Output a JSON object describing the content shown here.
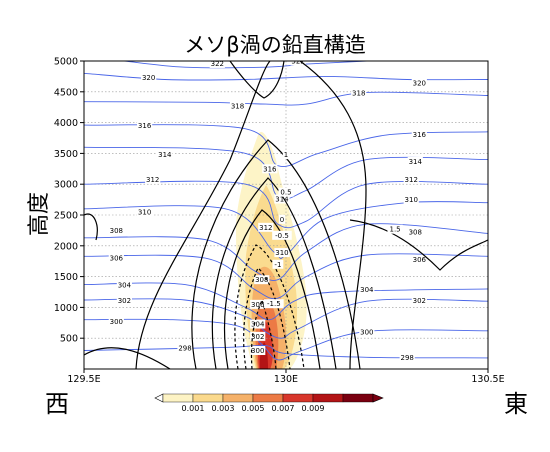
{
  "chart_data": {
    "type": "contour",
    "title": "メソβ渦の鉛直構造",
    "ylabel": "高度",
    "west_label": "西",
    "east_label": "東",
    "xlim": [
      129.5,
      130.5
    ],
    "ylim": [
      0,
      5000
    ],
    "x_ticks": [
      129.5,
      130.0,
      130.5
    ],
    "x_tick_labels": [
      "129.5E",
      "130E",
      "130.5E"
    ],
    "y_ticks": [
      500,
      1000,
      1500,
      2000,
      2500,
      3000,
      3500,
      4000,
      4500,
      5000
    ],
    "y_tick_labels": [
      "500",
      "1000",
      "1500",
      "2000",
      "2500",
      "3000",
      "3500",
      "4000",
      "4500",
      "5000"
    ],
    "grid": true,
    "vertical_grid_x": 130.0,
    "shading": {
      "levels": [
        0.001,
        0.003,
        0.005,
        0.007,
        0.009
      ],
      "colorbar_labels": [
        "0.001",
        "0.003",
        "0.005",
        "0.007",
        "0.009"
      ],
      "colors": [
        "#fdf3c4",
        "#fad98c",
        "#f5b169",
        "#ec7a45",
        "#d8362b",
        "#b31416",
        "#7a0010"
      ],
      "colorbar_position": "bottom"
    },
    "theta_contours": [
      {
        "label": "298",
        "line_color": "#3b5cf0",
        "points": [
          [
            129.5,
            300
          ],
          [
            129.85,
            350
          ],
          [
            129.95,
            380
          ],
          [
            130.0,
            250
          ],
          [
            130.2,
            190
          ],
          [
            130.5,
            180
          ]
        ],
        "label_at": [
          129.75,
          340
        ],
        "label_at_2": [
          130.3,
          190
        ]
      },
      {
        "label": "300",
        "points": [
          [
            129.5,
            800
          ],
          [
            129.72,
            800
          ],
          [
            129.88,
            700
          ],
          [
            129.94,
            400
          ],
          [
            129.98,
            150
          ],
          [
            130.04,
            300
          ],
          [
            130.2,
            610
          ],
          [
            130.5,
            620
          ]
        ],
        "label_at": [
          129.58,
          770
        ],
        "label_at_2": [
          130.2,
          600
        ],
        "label_at_3": [
          129.93,
          300
        ]
      },
      {
        "label": "302",
        "points": [
          [
            129.5,
            1120
          ],
          [
            129.75,
            1120
          ],
          [
            129.9,
            850
          ],
          [
            129.95,
            600
          ],
          [
            129.99,
            500
          ],
          [
            130.03,
            650
          ],
          [
            130.2,
            1100
          ],
          [
            130.5,
            1100
          ]
        ],
        "label_at": [
          129.6,
          1110
        ],
        "label_at_2": [
          130.33,
          1110
        ],
        "label_at_3": [
          129.93,
          530
        ]
      },
      {
        "label": "304",
        "points": [
          [
            129.5,
            1370
          ],
          [
            129.75,
            1370
          ],
          [
            129.9,
            1000
          ],
          [
            129.96,
            800
          ],
          [
            130.02,
            1100
          ],
          [
            130.12,
            1250
          ],
          [
            130.5,
            1300
          ]
        ],
        "label_at": [
          129.6,
          1360
        ],
        "label_at_2": [
          130.2,
          1290
        ],
        "label_at_3": [
          129.93,
          730
        ]
      },
      {
        "label": "306",
        "points": [
          [
            129.5,
            1830
          ],
          [
            129.8,
            1800
          ],
          [
            129.92,
            1300
          ],
          [
            129.98,
            1150
          ],
          [
            130.05,
            1500
          ],
          [
            130.2,
            1850
          ],
          [
            130.5,
            1830
          ]
        ],
        "label_at": [
          129.58,
          1800
        ],
        "label_at_2": [
          130.33,
          1780
        ],
        "label_at_3": [
          129.93,
          1050
        ]
      },
      {
        "label": "308",
        "points": [
          [
            129.5,
            2130
          ],
          [
            129.8,
            2100
          ],
          [
            129.92,
            1600
          ],
          [
            129.98,
            1450
          ],
          [
            130.05,
            1900
          ],
          [
            130.2,
            2350
          ],
          [
            130.5,
            2200
          ]
        ],
        "label_at": [
          129.58,
          2250
        ],
        "label_at_2": [
          130.32,
          2220
        ],
        "label_at_3": [
          129.94,
          1450
        ]
      },
      {
        "label": "310",
        "points": [
          [
            129.5,
            2600
          ],
          [
            129.85,
            2600
          ],
          [
            129.97,
            1900
          ],
          [
            130.0,
            1850
          ],
          [
            130.1,
            2450
          ],
          [
            130.3,
            2700
          ],
          [
            130.5,
            2700
          ]
        ],
        "label_at": [
          129.65,
          2550
        ],
        "label_at_2": [
          130.31,
          2750
        ],
        "label_at_3": [
          129.99,
          1890
        ]
      },
      {
        "label": "312",
        "points": [
          [
            129.5,
            3000
          ],
          [
            129.9,
            3000
          ],
          [
            129.98,
            2350
          ],
          [
            130.05,
            2400
          ],
          [
            130.2,
            3000
          ],
          [
            130.5,
            3000
          ]
        ],
        "label_at": [
          129.67,
          3080
        ],
        "label_at_2": [
          130.31,
          3080
        ],
        "label_at_3": [
          129.95,
          2300
        ]
      },
      {
        "label": "314",
        "points": [
          [
            129.5,
            3600
          ],
          [
            129.9,
            3500
          ],
          [
            129.98,
            2800
          ],
          [
            130.05,
            2900
          ],
          [
            130.2,
            3400
          ],
          [
            130.5,
            3400
          ]
        ],
        "label_at": [
          129.7,
          3480
        ],
        "label_at_2": [
          130.32,
          3370
        ],
        "label_at_3": [
          129.99,
          2760
        ]
      },
      {
        "label": "316",
        "points": [
          [
            129.5,
            3960
          ],
          [
            129.9,
            3900
          ],
          [
            129.98,
            3300
          ],
          [
            130.08,
            3500
          ],
          [
            130.25,
            3800
          ],
          [
            130.5,
            3850
          ]
        ],
        "label_at": [
          129.65,
          3950
        ],
        "label_at_2": [
          130.33,
          3810
        ],
        "label_at_3": [
          129.96,
          3250
        ]
      },
      {
        "label": "318",
        "points": [
          [
            129.5,
            4340
          ],
          [
            129.8,
            4330
          ],
          [
            129.95,
            4300
          ],
          [
            130.05,
            4300
          ],
          [
            130.2,
            4490
          ],
          [
            130.5,
            4440
          ]
        ],
        "label_at": [
          129.88,
          4270
        ],
        "label_at_2": [
          130.18,
          4480
        ]
      },
      {
        "label": "320",
        "points": [
          [
            129.5,
            4800
          ],
          [
            129.7,
            4700
          ],
          [
            129.9,
            4700
          ],
          [
            130.1,
            4750
          ],
          [
            130.3,
            4700
          ],
          [
            130.5,
            4700
          ]
        ],
        "label_at": [
          129.66,
          4730
        ],
        "label_at_2": [
          130.33,
          4640
        ]
      },
      {
        "label": "322",
        "points": [
          [
            129.6,
            5000
          ],
          [
            129.75,
            4900
          ],
          [
            129.95,
            4900
          ],
          [
            130.05,
            4950
          ],
          [
            130.2,
            5000
          ]
        ],
        "label_at": [
          129.83,
          4960
        ],
        "label_at_2": [
          130.03,
          5000
        ]
      }
    ],
    "vorticity_contours": [
      {
        "label": "-1.5",
        "style": "dashed",
        "label_at": [
          129.97,
          1060
        ]
      },
      {
        "label": "-1",
        "style": "dashed",
        "label_at": [
          129.98,
          1700
        ]
      },
      {
        "label": "-0.5",
        "style": "dashed",
        "label_at": [
          129.99,
          2170
        ]
      },
      {
        "label": "0",
        "style": "solid",
        "label_at": [
          129.99,
          2430
        ]
      },
      {
        "label": "0.5",
        "style": "solid",
        "label_at": [
          130.0,
          2870
        ]
      },
      {
        "label": "1",
        "style": "solid",
        "label_at": [
          130.0,
          3480
        ]
      },
      {
        "label": "1.5",
        "style": "solid",
        "label_at": [
          130.27,
          2270
        ]
      }
    ]
  }
}
